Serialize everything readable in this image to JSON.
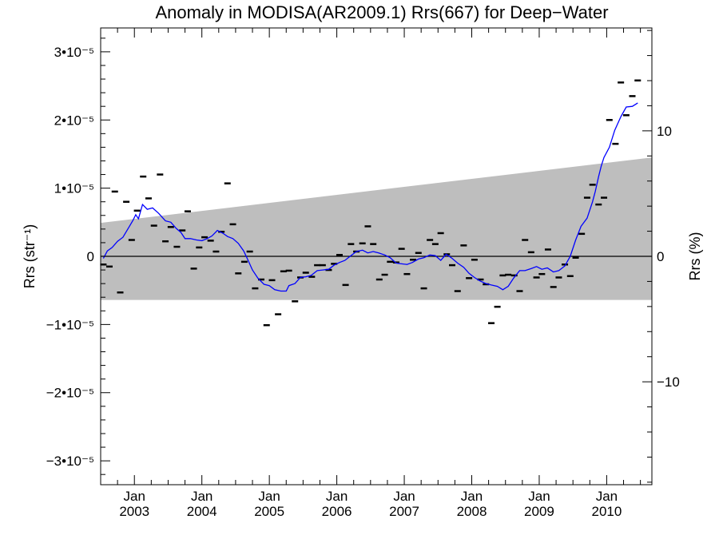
{
  "chart_data": {
    "type": "scatter",
    "title": "Anomaly in MODISA(AR2009.1) Rrs(667) for Deep−Water",
    "ylabel_left": "Rrs (str⁻¹)",
    "ylabel_right": "Rrs (%)",
    "xlim": [
      2002.5,
      2010.67
    ],
    "ylim_left": [
      -3.35e-05,
      3.35e-05
    ],
    "ylim_right": [
      -18.2,
      18.2
    ],
    "left_ticks": [
      {
        "value": 3e-05,
        "label": "3•10⁻⁵"
      },
      {
        "value": 2e-05,
        "label": "2•10⁻⁵"
      },
      {
        "value": 1e-05,
        "label": "1•10⁻⁵"
      },
      {
        "value": 0,
        "label": "0"
      },
      {
        "value": -1e-05,
        "label": "−1•10⁻⁵"
      },
      {
        "value": -2e-05,
        "label": "−2•10⁻⁵"
      },
      {
        "value": -3e-05,
        "label": "−3•10⁻⁵"
      }
    ],
    "right_ticks": [
      {
        "value": 10,
        "label": "10"
      },
      {
        "value": 0,
        "label": "0"
      },
      {
        "value": -10,
        "label": "−10"
      }
    ],
    "x_ticks": [
      {
        "value": 2003,
        "month": "Jan",
        "year": "2003"
      },
      {
        "value": 2004,
        "month": "Jan",
        "year": "2004"
      },
      {
        "value": 2005,
        "month": "Jan",
        "year": "2005"
      },
      {
        "value": 2006,
        "month": "Jan",
        "year": "2006"
      },
      {
        "value": 2007,
        "month": "Jan",
        "year": "2007"
      },
      {
        "value": 2008,
        "month": "Jan",
        "year": "2008"
      },
      {
        "value": 2009,
        "month": "Jan",
        "year": "2009"
      },
      {
        "value": 2010,
        "month": "Jan",
        "year": "2010"
      }
    ],
    "band": {
      "lower": [
        [
          2002.5,
          -6.4e-06
        ],
        [
          2010.67,
          -6.4e-06
        ]
      ],
      "upper": [
        [
          2002.5,
          4.9e-06
        ],
        [
          2010.67,
          1.45e-05
        ]
      ],
      "color": "#bebebe"
    },
    "zero_line": true,
    "series": [
      {
        "style": "dash",
        "color": "#000000",
        "points": [
          [
            2002.54,
            -1.2e-06
          ],
          [
            2002.63,
            -1.5e-06
          ],
          [
            2002.71,
            9.5e-06
          ],
          [
            2002.79,
            -5.3e-06
          ],
          [
            2002.88,
            8e-06
          ],
          [
            2002.96,
            2.4e-06
          ],
          [
            2003.04,
            6.7e-06
          ],
          [
            2003.13,
            1.17e-05
          ],
          [
            2003.21,
            8.5e-06
          ],
          [
            2003.29,
            4.5e-06
          ],
          [
            2003.38,
            1.2e-05
          ],
          [
            2003.46,
            2.2e-06
          ],
          [
            2003.54,
            4.3e-06
          ],
          [
            2003.63,
            1.4e-06
          ],
          [
            2003.71,
            3.8e-06
          ],
          [
            2003.79,
            6.6e-06
          ],
          [
            2003.88,
            -1.8e-06
          ],
          [
            2003.96,
            1.3e-06
          ],
          [
            2004.04,
            2.8e-06
          ],
          [
            2004.13,
            2.3e-06
          ],
          [
            2004.21,
            7e-07
          ],
          [
            2004.29,
            3.6e-06
          ],
          [
            2004.38,
            1.07e-05
          ],
          [
            2004.46,
            4.7e-06
          ],
          [
            2004.54,
            -2.5e-06
          ],
          [
            2004.63,
            -8e-07
          ],
          [
            2004.71,
            7e-07
          ],
          [
            2004.79,
            -4.7e-06
          ],
          [
            2004.88,
            -3.4e-06
          ],
          [
            2004.96,
            -1.01e-05
          ],
          [
            2005.04,
            -3.5e-06
          ],
          [
            2005.13,
            -8.5e-06
          ],
          [
            2005.21,
            -2.2e-06
          ],
          [
            2005.29,
            -2.1e-06
          ],
          [
            2005.38,
            -6.6e-06
          ],
          [
            2005.46,
            -3.1e-06
          ],
          [
            2005.54,
            -2.4e-06
          ],
          [
            2005.63,
            -3e-06
          ],
          [
            2005.71,
            -1.3e-06
          ],
          [
            2005.79,
            -1.3e-06
          ],
          [
            2005.88,
            -2e-06
          ],
          [
            2005.96,
            -1.1e-06
          ],
          [
            2006.04,
            2e-07
          ],
          [
            2006.13,
            -4.2e-06
          ],
          [
            2006.21,
            1.8e-06
          ],
          [
            2006.29,
            7e-07
          ],
          [
            2006.38,
            1.9e-06
          ],
          [
            2006.46,
            4.4e-06
          ],
          [
            2006.54,
            1.8e-06
          ],
          [
            2006.63,
            -3.4e-06
          ],
          [
            2006.71,
            -2.7e-06
          ],
          [
            2006.79,
            -8e-07
          ],
          [
            2006.88,
            -9e-07
          ],
          [
            2006.96,
            1.1e-06
          ],
          [
            2007.04,
            -2.6e-06
          ],
          [
            2007.13,
            -5e-07
          ],
          [
            2007.21,
            5e-07
          ],
          [
            2007.29,
            -4.7e-06
          ],
          [
            2007.38,
            2.4e-06
          ],
          [
            2007.46,
            1.8e-06
          ],
          [
            2007.54,
            3.4e-06
          ],
          [
            2007.63,
            3e-07
          ],
          [
            2007.71,
            -1.3e-06
          ],
          [
            2007.79,
            -5.1e-06
          ],
          [
            2007.88,
            1.6e-06
          ],
          [
            2007.96,
            -3.2e-06
          ],
          [
            2008.04,
            -5e-07
          ],
          [
            2008.13,
            -3.4e-06
          ],
          [
            2008.21,
            -4.1e-06
          ],
          [
            2008.29,
            -9.8e-06
          ],
          [
            2008.38,
            -7.4e-06
          ],
          [
            2008.46,
            -2.8e-06
          ],
          [
            2008.54,
            -2.7e-06
          ],
          [
            2008.63,
            -2.8e-06
          ],
          [
            2008.71,
            -5.1e-06
          ],
          [
            2008.79,
            2.4e-06
          ],
          [
            2008.88,
            6e-07
          ],
          [
            2008.96,
            -3.1e-06
          ],
          [
            2009.04,
            -2.6e-06
          ],
          [
            2009.13,
            1e-06
          ],
          [
            2009.21,
            -4.5e-06
          ],
          [
            2009.29,
            -3.1e-06
          ],
          [
            2009.38,
            -1.2e-06
          ],
          [
            2009.46,
            -2.9e-06
          ],
          [
            2009.54,
            -2e-07
          ],
          [
            2009.63,
            3.3e-06
          ],
          [
            2009.71,
            8.6e-06
          ],
          [
            2009.79,
            1.05e-05
          ],
          [
            2009.88,
            7.6e-06
          ],
          [
            2009.96,
            8.6e-06
          ],
          [
            2010.04,
            2e-05
          ],
          [
            2010.13,
            1.65e-05
          ],
          [
            2010.21,
            2.55e-05
          ],
          [
            2010.29,
            2.07e-05
          ],
          [
            2010.38,
            2.35e-05
          ],
          [
            2010.46,
            2.58e-05
          ]
        ]
      },
      {
        "style": "line",
        "color": "#0000ff",
        "points": [
          [
            2002.54,
            -3e-07
          ],
          [
            2002.6,
            8e-07
          ],
          [
            2002.67,
            1.3e-06
          ],
          [
            2002.75,
            2.2e-06
          ],
          [
            2002.83,
            2.8e-06
          ],
          [
            2002.92,
            4.3e-06
          ],
          [
            2002.98,
            5.3e-06
          ],
          [
            2003.02,
            6.1e-06
          ],
          [
            2003.06,
            5.5e-06
          ],
          [
            2003.12,
            7.6e-06
          ],
          [
            2003.19,
            6.9e-06
          ],
          [
            2003.27,
            7.1e-06
          ],
          [
            2003.36,
            6.3e-06
          ],
          [
            2003.46,
            5.2e-06
          ],
          [
            2003.54,
            5e-06
          ],
          [
            2003.62,
            4.1e-06
          ],
          [
            2003.69,
            3.5e-06
          ],
          [
            2003.75,
            2.6e-06
          ],
          [
            2003.83,
            2.6e-06
          ],
          [
            2003.92,
            2.4e-06
          ],
          [
            2004.0,
            2.3e-06
          ],
          [
            2004.08,
            2.6e-06
          ],
          [
            2004.15,
            3e-06
          ],
          [
            2004.23,
            3.8e-06
          ],
          [
            2004.31,
            3.4e-06
          ],
          [
            2004.38,
            2.9e-06
          ],
          [
            2004.46,
            2.6e-06
          ],
          [
            2004.54,
            1.9e-06
          ],
          [
            2004.62,
            8e-07
          ],
          [
            2004.69,
            -7e-07
          ],
          [
            2004.75,
            -2e-06
          ],
          [
            2004.83,
            -3.2e-06
          ],
          [
            2004.92,
            -4.1e-06
          ],
          [
            2005.0,
            -4.3e-06
          ],
          [
            2005.08,
            -4.9e-06
          ],
          [
            2005.17,
            -5.1e-06
          ],
          [
            2005.25,
            -5.1e-06
          ],
          [
            2005.29,
            -4.3e-06
          ],
          [
            2005.38,
            -4e-06
          ],
          [
            2005.46,
            -3.1e-06
          ],
          [
            2005.54,
            -3e-06
          ],
          [
            2005.62,
            -2.8e-06
          ],
          [
            2005.71,
            -2.1e-06
          ],
          [
            2005.79,
            -2e-06
          ],
          [
            2005.88,
            -1.9e-06
          ],
          [
            2005.96,
            -1.3e-06
          ],
          [
            2006.04,
            -9e-07
          ],
          [
            2006.12,
            -6e-07
          ],
          [
            2006.21,
            1e-07
          ],
          [
            2006.29,
            7e-07
          ],
          [
            2006.38,
            9e-07
          ],
          [
            2006.46,
            5e-07
          ],
          [
            2006.54,
            7e-07
          ],
          [
            2006.62,
            5e-07
          ],
          [
            2006.71,
            2e-07
          ],
          [
            2006.79,
            -2e-07
          ],
          [
            2006.88,
            -1e-06
          ],
          [
            2006.96,
            -1.1e-06
          ],
          [
            2007.04,
            -1.2e-06
          ],
          [
            2007.12,
            -9e-07
          ],
          [
            2007.21,
            -4e-07
          ],
          [
            2007.29,
            -2e-07
          ],
          [
            2007.38,
            2e-07
          ],
          [
            2007.46,
            1e-07
          ],
          [
            2007.54,
            -6e-07
          ],
          [
            2007.62,
            3e-07
          ],
          [
            2007.71,
            -3e-07
          ],
          [
            2007.79,
            -1e-06
          ],
          [
            2007.88,
            -1.6e-06
          ],
          [
            2007.96,
            -2.5e-06
          ],
          [
            2008.04,
            -3.1e-06
          ],
          [
            2008.12,
            -3.6e-06
          ],
          [
            2008.21,
            -4e-06
          ],
          [
            2008.29,
            -4.2e-06
          ],
          [
            2008.38,
            -4.4e-06
          ],
          [
            2008.46,
            -4.9e-06
          ],
          [
            2008.54,
            -4.4e-06
          ],
          [
            2008.62,
            -3.2e-06
          ],
          [
            2008.71,
            -2.1e-06
          ],
          [
            2008.79,
            -2.1e-06
          ],
          [
            2008.88,
            -1.8e-06
          ],
          [
            2008.96,
            -1.5e-06
          ],
          [
            2009.04,
            -1.9e-06
          ],
          [
            2009.12,
            -1.7e-06
          ],
          [
            2009.21,
            -2.3e-06
          ],
          [
            2009.29,
            -2.1e-06
          ],
          [
            2009.38,
            -1.4e-06
          ],
          [
            2009.46,
            0
          ],
          [
            2009.54,
            2.4e-06
          ],
          [
            2009.62,
            4.4e-06
          ],
          [
            2009.71,
            5.6e-06
          ],
          [
            2009.79,
            8e-06
          ],
          [
            2009.83,
            9.5e-06
          ],
          [
            2009.88,
            1.17e-05
          ],
          [
            2009.92,
            1.33e-05
          ],
          [
            2009.96,
            1.45e-05
          ],
          [
            2010.04,
            1.6e-05
          ],
          [
            2010.12,
            1.85e-05
          ],
          [
            2010.21,
            2.05e-05
          ],
          [
            2010.29,
            2.19e-05
          ],
          [
            2010.38,
            2.2e-05
          ],
          [
            2010.46,
            2.25e-05
          ]
        ]
      }
    ]
  }
}
